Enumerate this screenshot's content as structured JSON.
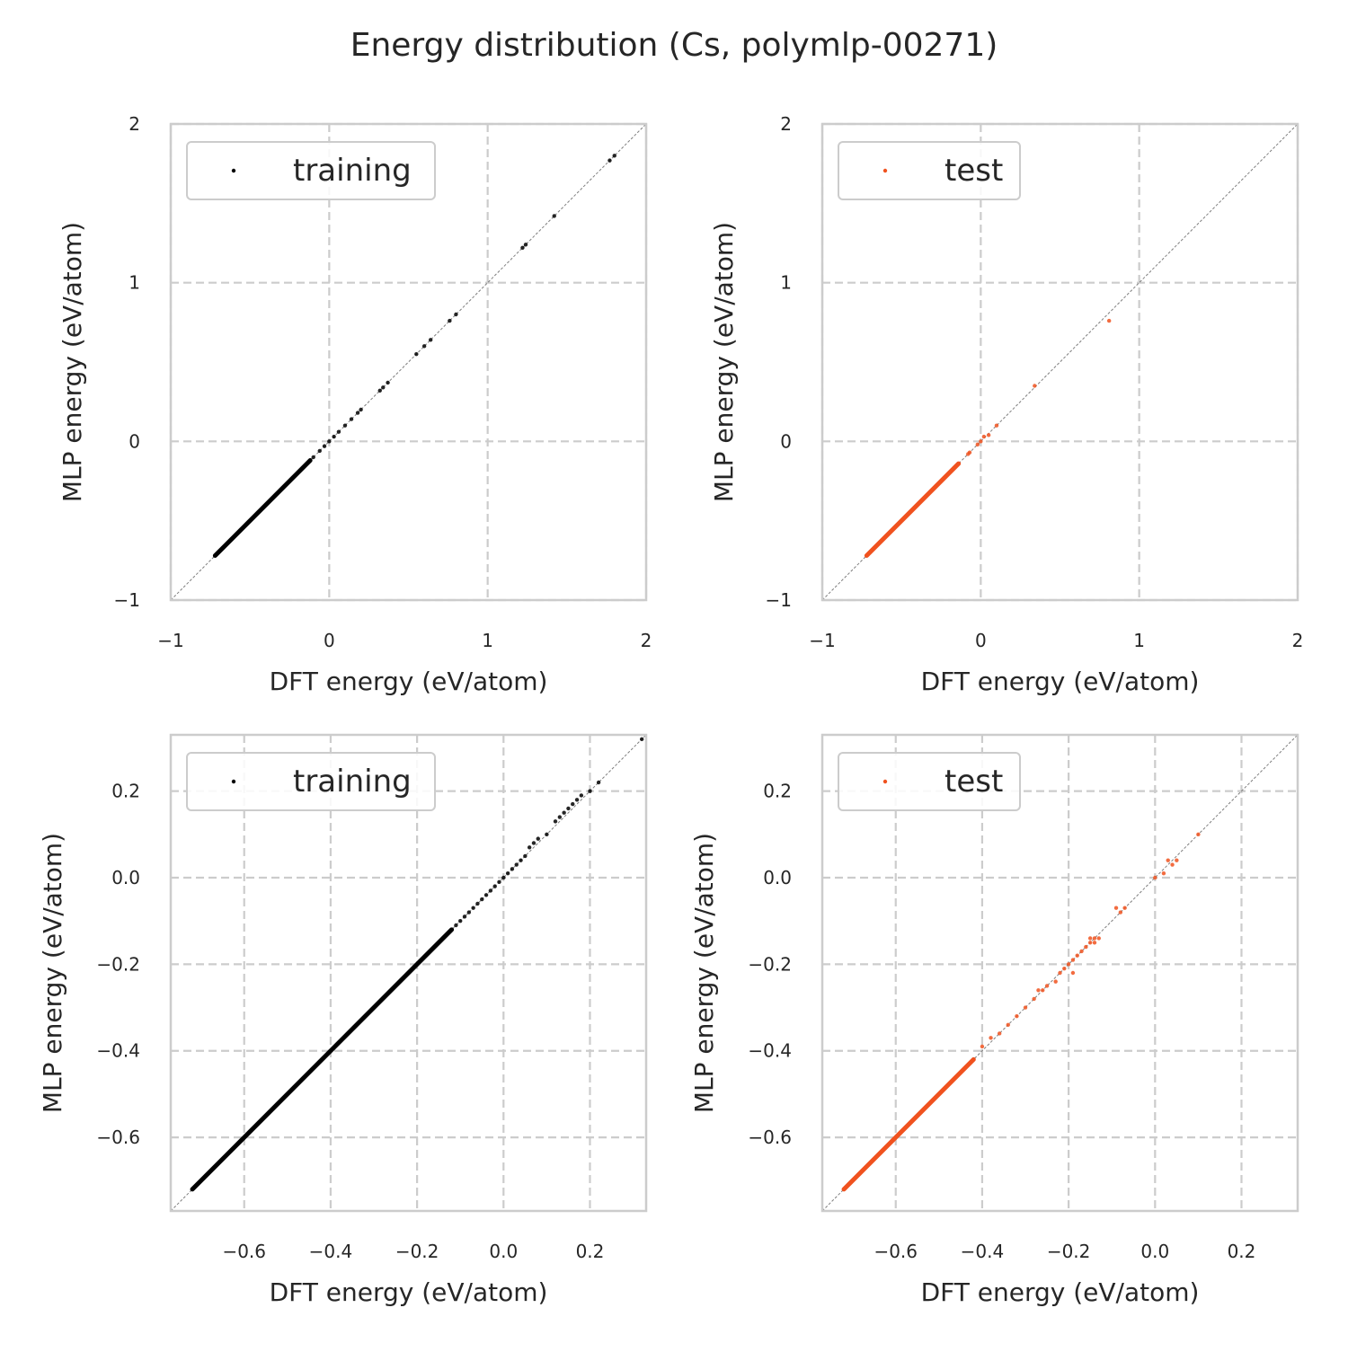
{
  "figure": {
    "title": "Energy distribution (Cs, polymlp-00271)"
  },
  "chart_data": [
    {
      "type": "scatter",
      "panel": "top-left",
      "xlabel": "DFT energy (eV/atom)",
      "ylabel": "MLP energy (eV/atom)",
      "xlim": [
        -1,
        2
      ],
      "ylim": [
        -1,
        2
      ],
      "xticks": [
        -1,
        0,
        1,
        2
      ],
      "yticks": [
        -1,
        0,
        1,
        2
      ],
      "xtick_labels": [
        "−1",
        "0",
        "1",
        "2"
      ],
      "ytick_labels": [
        "−1",
        "0",
        "1",
        "2"
      ],
      "grid": true,
      "diagonal": true,
      "legend_position": "top-left",
      "series": [
        {
          "name": "training",
          "color": "#000000",
          "dense_range": [
            -0.72,
            -0.12
          ],
          "points": [
            [
              -0.1,
              -0.1
            ],
            [
              -0.06,
              -0.06
            ],
            [
              -0.03,
              -0.03
            ],
            [
              0.0,
              0.0
            ],
            [
              0.03,
              0.03
            ],
            [
              0.06,
              0.06
            ],
            [
              0.1,
              0.1
            ],
            [
              0.14,
              0.14
            ],
            [
              0.18,
              0.18
            ],
            [
              0.2,
              0.2
            ],
            [
              0.32,
              0.32
            ],
            [
              0.34,
              0.34
            ],
            [
              0.37,
              0.37
            ],
            [
              0.55,
              0.55
            ],
            [
              0.6,
              0.6
            ],
            [
              0.64,
              0.64
            ],
            [
              0.76,
              0.76
            ],
            [
              0.8,
              0.8
            ],
            [
              1.22,
              1.22
            ],
            [
              1.24,
              1.24
            ],
            [
              1.42,
              1.42
            ],
            [
              1.77,
              1.77
            ],
            [
              1.8,
              1.8
            ]
          ]
        }
      ]
    },
    {
      "type": "scatter",
      "panel": "top-right",
      "xlabel": "DFT energy (eV/atom)",
      "ylabel": "MLP energy (eV/atom)",
      "xlim": [
        -1,
        2
      ],
      "ylim": [
        -1,
        2
      ],
      "xticks": [
        -1,
        0,
        1,
        2
      ],
      "yticks": [
        -1,
        0,
        1,
        2
      ],
      "xtick_labels": [
        "−1",
        "0",
        "1",
        "2"
      ],
      "ytick_labels": [
        "−1",
        "0",
        "1",
        "2"
      ],
      "grid": true,
      "diagonal": true,
      "legend_position": "top-left",
      "series": [
        {
          "name": "test",
          "color": "#f0521f",
          "dense_range": [
            -0.72,
            -0.14
          ],
          "points": [
            [
              -0.08,
              -0.08
            ],
            [
              -0.07,
              -0.07
            ],
            [
              -0.02,
              -0.02
            ],
            [
              0.0,
              0.0
            ],
            [
              0.02,
              0.03
            ],
            [
              0.05,
              0.04
            ],
            [
              0.1,
              0.1
            ],
            [
              0.34,
              0.35
            ],
            [
              0.81,
              0.76
            ]
          ]
        }
      ]
    },
    {
      "type": "scatter",
      "panel": "bottom-left",
      "xlabel": "DFT energy (eV/atom)",
      "ylabel": "MLP energy (eV/atom)",
      "xlim": [
        -0.77,
        0.33
      ],
      "ylim": [
        -0.77,
        0.33
      ],
      "xticks": [
        -0.6,
        -0.4,
        -0.2,
        0.0,
        0.2
      ],
      "yticks": [
        -0.6,
        -0.4,
        -0.2,
        0.0,
        0.2
      ],
      "xtick_labels": [
        "−0.6",
        "−0.4",
        "−0.2",
        "0.0",
        "0.2"
      ],
      "ytick_labels": [
        "−0.6",
        "−0.4",
        "−0.2",
        "0.0",
        "0.2"
      ],
      "grid": true,
      "diagonal": true,
      "legend_position": "top-left",
      "series": [
        {
          "name": "training",
          "color": "#000000",
          "dense_range": [
            -0.72,
            -0.12
          ],
          "points": [
            [
              -0.13,
              -0.13
            ],
            [
              -0.11,
              -0.11
            ],
            [
              -0.1,
              -0.1
            ],
            [
              -0.09,
              -0.09
            ],
            [
              -0.08,
              -0.08
            ],
            [
              -0.07,
              -0.07
            ],
            [
              -0.06,
              -0.06
            ],
            [
              -0.05,
              -0.05
            ],
            [
              -0.04,
              -0.04
            ],
            [
              -0.03,
              -0.03
            ],
            [
              -0.02,
              -0.02
            ],
            [
              -0.01,
              -0.01
            ],
            [
              0.0,
              0.0
            ],
            [
              0.01,
              0.01
            ],
            [
              0.02,
              0.02
            ],
            [
              0.03,
              0.03
            ],
            [
              0.04,
              0.04
            ],
            [
              0.05,
              0.05
            ],
            [
              0.06,
              0.07
            ],
            [
              0.07,
              0.08
            ],
            [
              0.08,
              0.09
            ],
            [
              0.1,
              0.1
            ],
            [
              0.12,
              0.13
            ],
            [
              0.13,
              0.14
            ],
            [
              0.14,
              0.15
            ],
            [
              0.15,
              0.16
            ],
            [
              0.16,
              0.17
            ],
            [
              0.17,
              0.18
            ],
            [
              0.18,
              0.19
            ],
            [
              0.2,
              0.2
            ],
            [
              0.22,
              0.22
            ],
            [
              0.32,
              0.32
            ]
          ]
        }
      ]
    },
    {
      "type": "scatter",
      "panel": "bottom-right",
      "xlabel": "DFT energy (eV/atom)",
      "ylabel": "MLP energy (eV/atom)",
      "xlim": [
        -0.77,
        0.33
      ],
      "ylim": [
        -0.77,
        0.33
      ],
      "xticks": [
        -0.6,
        -0.4,
        -0.2,
        0.0,
        0.2
      ],
      "yticks": [
        -0.6,
        -0.4,
        -0.2,
        0.0,
        0.2
      ],
      "xtick_labels": [
        "−0.6",
        "−0.4",
        "−0.2",
        "0.0",
        "0.2"
      ],
      "ytick_labels": [
        "−0.6",
        "−0.4",
        "−0.2",
        "0.0",
        "0.2"
      ],
      "grid": true,
      "diagonal": true,
      "legend_position": "top-left",
      "series": [
        {
          "name": "test",
          "color": "#f0521f",
          "dense_range": [
            -0.72,
            -0.42
          ],
          "points": [
            [
              -0.4,
              -0.39
            ],
            [
              -0.38,
              -0.37
            ],
            [
              -0.36,
              -0.36
            ],
            [
              -0.34,
              -0.34
            ],
            [
              -0.32,
              -0.32
            ],
            [
              -0.3,
              -0.3
            ],
            [
              -0.28,
              -0.28
            ],
            [
              -0.27,
              -0.26
            ],
            [
              -0.26,
              -0.26
            ],
            [
              -0.25,
              -0.25
            ],
            [
              -0.23,
              -0.24
            ],
            [
              -0.22,
              -0.22
            ],
            [
              -0.21,
              -0.21
            ],
            [
              -0.2,
              -0.2
            ],
            [
              -0.19,
              -0.19
            ],
            [
              -0.18,
              -0.18
            ],
            [
              -0.17,
              -0.17
            ],
            [
              -0.16,
              -0.16
            ],
            [
              -0.15,
              -0.15
            ],
            [
              -0.15,
              -0.14
            ],
            [
              -0.14,
              -0.14
            ],
            [
              -0.14,
              -0.15
            ],
            [
              -0.13,
              -0.14
            ],
            [
              -0.19,
              -0.22
            ],
            [
              -0.09,
              -0.07
            ],
            [
              -0.08,
              -0.08
            ],
            [
              -0.07,
              -0.07
            ],
            [
              0.0,
              0.0
            ],
            [
              0.02,
              0.01
            ],
            [
              0.03,
              0.04
            ],
            [
              0.04,
              0.03
            ],
            [
              0.05,
              0.04
            ],
            [
              0.1,
              0.1
            ]
          ]
        }
      ]
    }
  ]
}
